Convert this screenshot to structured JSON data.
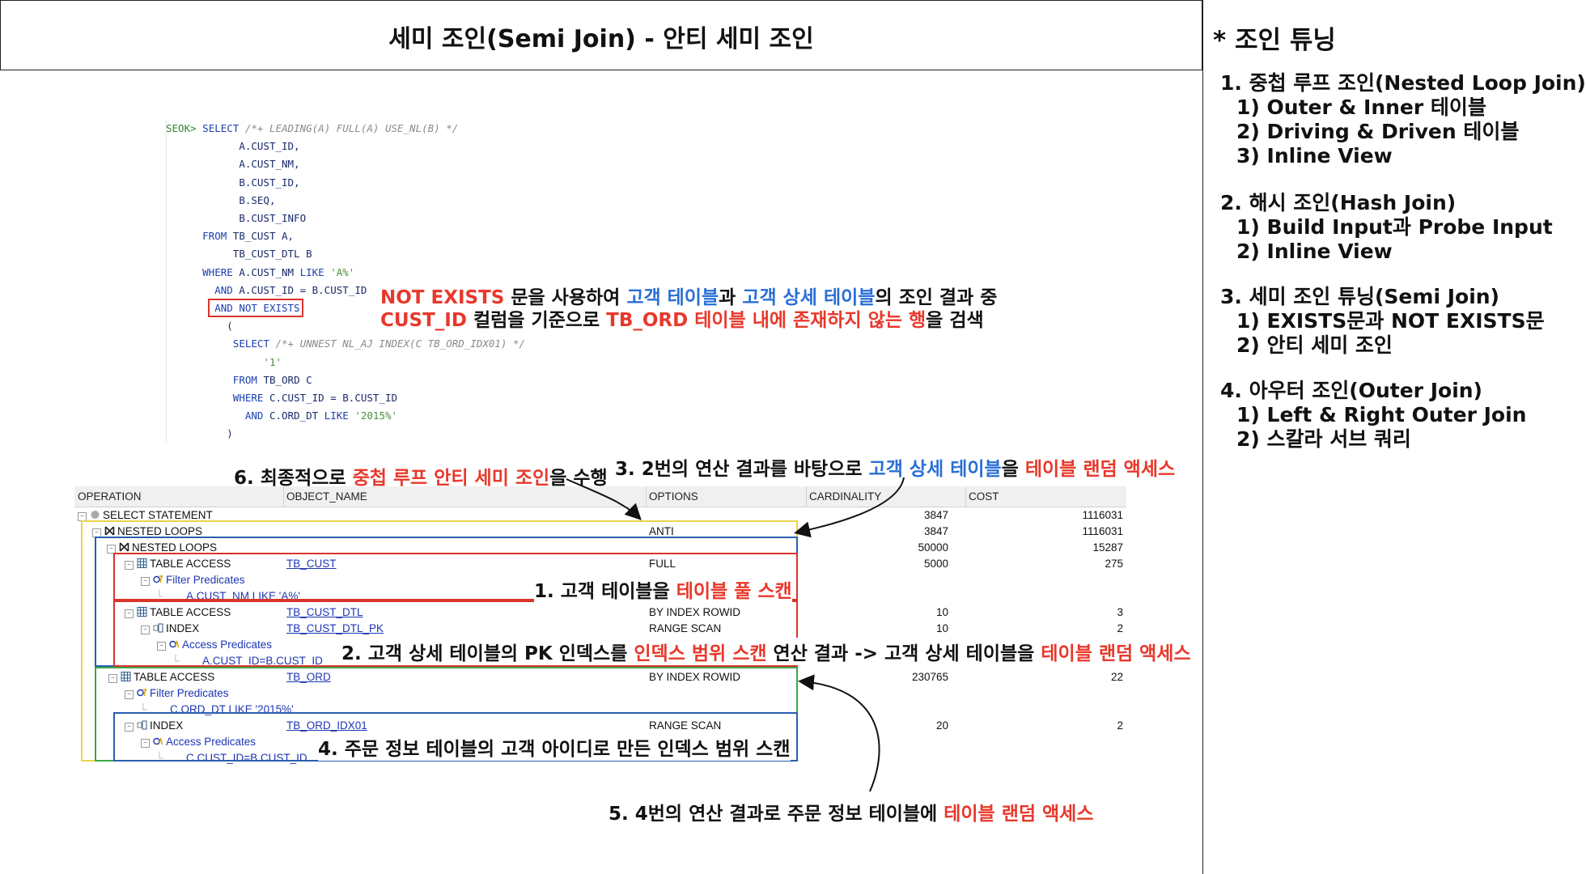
{
  "title": "세미 조인(Semi Join) - 안티 세미 조인",
  "sidebar": {
    "heading": "* 조인 튜닝",
    "sections": [
      {
        "title": "1. 중첩 루프 조인(Nested Loop Join)",
        "items": [
          "1) Outer & Inner 테이블",
          "2) Driving & Driven 테이블",
          "3) Inline View"
        ]
      },
      {
        "title": "2. 해시 조인(Hash Join)",
        "items": [
          "1) Build Input과 Probe Input",
          "2) Inline View"
        ]
      },
      {
        "title": "3. 세미 조인 튜닝(Semi Join)",
        "items": [
          "1) EXISTS문과 NOT EXISTS문",
          "2) 안티 세미 조인"
        ]
      },
      {
        "title": "4. 아우터 조인(Outer Join)",
        "items": [
          "1) Left & Right Outer Join",
          "2) 스칼라 서브 쿼리"
        ]
      }
    ]
  },
  "code": {
    "prompt": "SEOK>",
    "lines": {
      "l1_kw": "SELECT",
      "l1_hint": "/*+ LEADING(A) FULL(A) USE_NL(B) */",
      "l2": "A.CUST_ID,",
      "l3": "A.CUST_NM,",
      "l4": "B.CUST_ID,",
      "l5": "B.SEQ,",
      "l6": "B.CUST_INFO",
      "l7_kw": "FROM",
      "l7": "TB_CUST A,",
      "l8": "TB_CUST_DTL B",
      "l9_kw": "WHERE",
      "l9": "A.CUST_NM",
      "l9_kw2": "LIKE",
      "l9_str": "'A%'",
      "l10_kw": "AND",
      "l10": "A.CUST_ID = B.CUST_ID",
      "l11_kw": "AND NOT EXISTS",
      "l12": "(",
      "l13_kw": "SELECT",
      "l13_hint": "/*+ UNNEST NL_AJ INDEX(C TB_ORD_IDX01) */",
      "l14_str": "'1'",
      "l15_kw": "FROM",
      "l15": "TB_ORD C",
      "l16_kw": "WHERE",
      "l16": "C.CUST_ID = B.CUST_ID",
      "l17_kw": "AND",
      "l17": "C.ORD_DT",
      "l17_kw2": "LIKE",
      "l17_str": "'2015%'",
      "l18": ")"
    }
  },
  "annotations": {
    "not_exists": {
      "a1": "NOT EXISTS",
      "a2": " 문을 사용하여 ",
      "a3": "고객 테이블",
      "a4": "과 ",
      "a5": "고객 상세 테이블",
      "a6": "의 조인 결과 중",
      "b1": "CUST_ID",
      "b2": " 컬럼을 기준으로 ",
      "b3": "TB_ORD 테이블 내에 존재하지 않는 행",
      "b4": "을 검색"
    },
    "step6": {
      "a": "6. 최종적으로 ",
      "b": "중첩 루프 안티 세미 조인",
      "c": "을 수행"
    },
    "step3": {
      "a": "3. 2번의 연산 결과를 바탕으로 ",
      "b": "고객 상세 테이블",
      "c": "을 ",
      "d": "테이블 랜덤 액세스"
    },
    "step1": {
      "a": "1. 고객 테이블을 ",
      "b": "테이블 풀 스캔"
    },
    "step2": {
      "a": "2. 고객 상세 테이블의 PK 인덱스를 ",
      "b": "인덱스 범위 스캔",
      "c": " 연산 결과 -> 고객 상세 테이블을 ",
      "d": "테이블 랜덤 액세스"
    },
    "step4": {
      "a": "4. 주문 정보 테이블의 고객 아이디로 만든 인덱스 범위 스캔"
    },
    "step5": {
      "a": "5. 4번의 연산 결과로 주문 정보 테이블에 ",
      "b": "테이블 랜덤 액세스"
    }
  },
  "plan": {
    "headers": [
      "OPERATION",
      "OBJECT_NAME",
      "OPTIONS",
      "CARDINALITY",
      "COST"
    ],
    "rows": [
      {
        "op": "SELECT STATEMENT",
        "obj": "",
        "opt": "",
        "card": "3847",
        "cost": "1116031"
      },
      {
        "op": "NESTED LOOPS",
        "obj": "",
        "opt": "ANTI",
        "card": "3847",
        "cost": "1116031"
      },
      {
        "op": "NESTED LOOPS",
        "obj": "",
        "opt": "",
        "card": "50000",
        "cost": "15287"
      },
      {
        "op": "TABLE ACCESS",
        "obj": "TB_CUST",
        "opt": "FULL",
        "card": "5000",
        "cost": "275"
      },
      {
        "op": "Filter Predicates",
        "obj": "",
        "opt": "",
        "card": "",
        "cost": ""
      },
      {
        "op": "A.CUST_NM LIKE 'A%'",
        "obj": "",
        "opt": "",
        "card": "",
        "cost": ""
      },
      {
        "op": "TABLE ACCESS",
        "obj": "TB_CUST_DTL",
        "opt": "BY INDEX ROWID",
        "card": "10",
        "cost": "3"
      },
      {
        "op": "INDEX",
        "obj": "TB_CUST_DTL_PK",
        "opt": "RANGE SCAN",
        "card": "10",
        "cost": "2"
      },
      {
        "op": "Access Predicates",
        "obj": "",
        "opt": "",
        "card": "",
        "cost": ""
      },
      {
        "op": "A.CUST_ID=B.CUST_ID",
        "obj": "",
        "opt": "",
        "card": "",
        "cost": ""
      },
      {
        "op": "TABLE ACCESS",
        "obj": "TB_ORD",
        "opt": "BY INDEX ROWID",
        "card": "230765",
        "cost": "22"
      },
      {
        "op": "Filter Predicates",
        "obj": "",
        "opt": "",
        "card": "",
        "cost": ""
      },
      {
        "op": "C.ORD_DT LIKE '2015%'",
        "obj": "",
        "opt": "",
        "card": "",
        "cost": ""
      },
      {
        "op": "INDEX",
        "obj": "TB_ORD_IDX01",
        "opt": "RANGE SCAN",
        "card": "20",
        "cost": "2"
      },
      {
        "op": "Access Predicates",
        "obj": "",
        "opt": "",
        "card": "",
        "cost": ""
      },
      {
        "op": "C.CUST_ID=B.CUST_ID",
        "obj": "",
        "opt": "",
        "card": "",
        "cost": ""
      }
    ]
  },
  "colors": {
    "red": "#e8382b",
    "blue": "#2a6fd6",
    "yellow": "#e8d44a",
    "green": "#3aa84a",
    "frame_blue": "#2a5fb0"
  }
}
